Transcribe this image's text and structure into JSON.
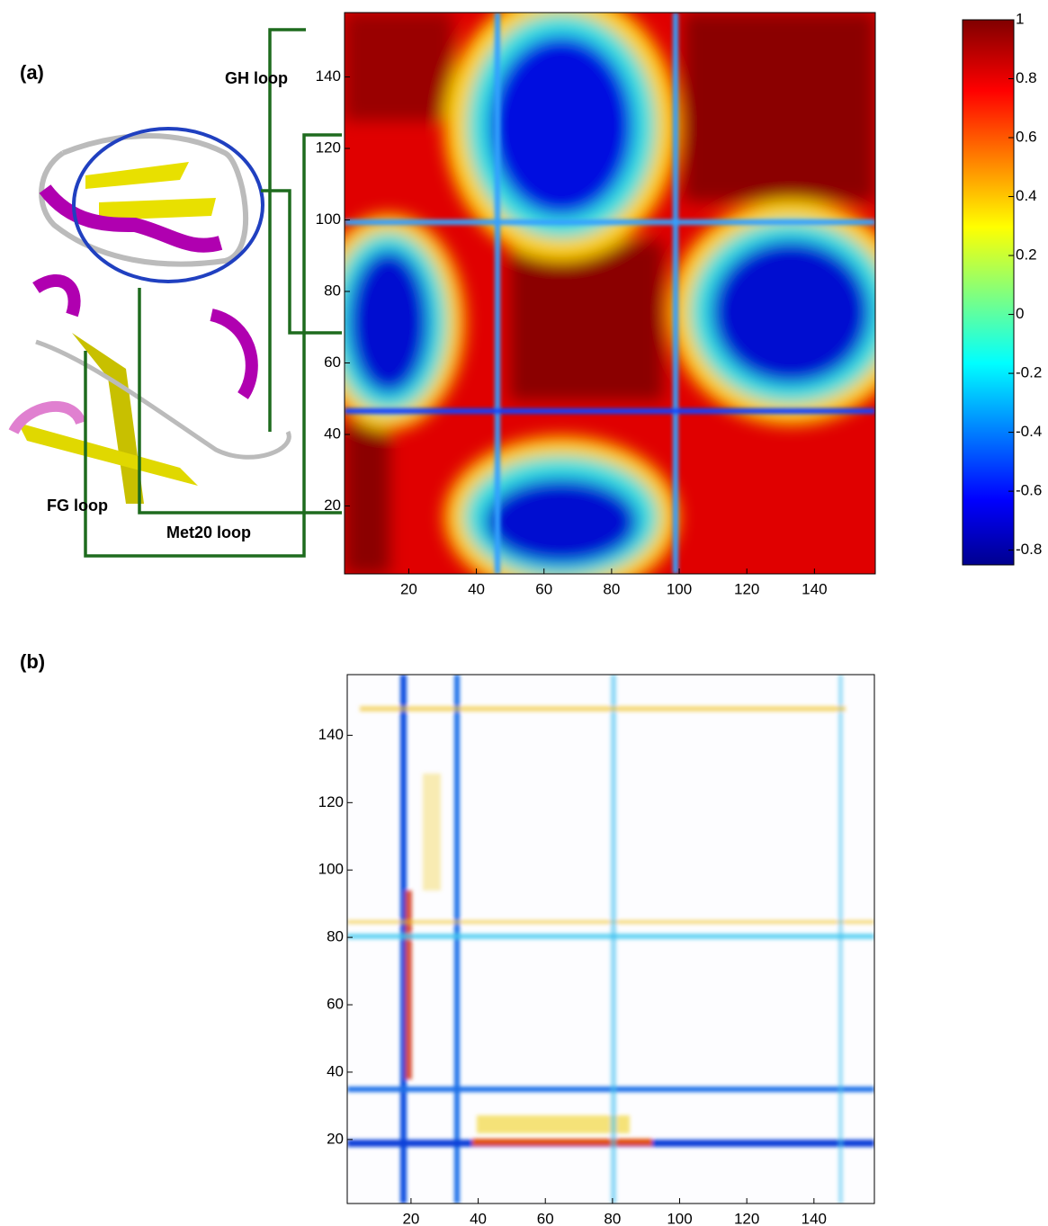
{
  "panels": [
    {
      "label": "(a)",
      "xlim": [
        1,
        158
      ],
      "ylim": [
        1,
        158
      ],
      "xticks": [
        20,
        40,
        60,
        80,
        100,
        120,
        140
      ],
      "yticks": [
        20,
        40,
        60,
        80,
        100,
        120,
        140
      ],
      "annotations": [
        "GH loop",
        "FG loop",
        "Met20 loop"
      ]
    },
    {
      "label": "(b)",
      "xlim": [
        1,
        158
      ],
      "ylim": [
        1,
        158
      ],
      "xticks": [
        20,
        40,
        60,
        80,
        100,
        120,
        140
      ],
      "yticks": [
        20,
        40,
        60,
        80,
        100,
        120,
        140
      ]
    }
  ],
  "colorbar": {
    "lim": [
      -0.85,
      1
    ],
    "ticks": [
      1,
      0.8,
      0.6,
      0.4,
      0.2,
      0,
      -0.2,
      -0.4,
      -0.6,
      -0.8
    ]
  }
}
